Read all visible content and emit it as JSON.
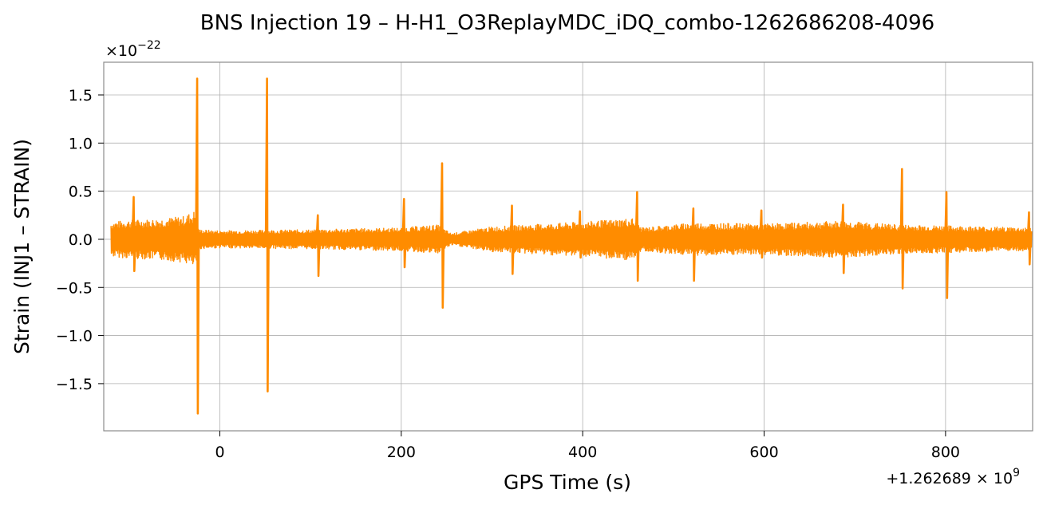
{
  "chart_data": {
    "type": "line",
    "title": "BNS Injection 19 – H-H1_O3ReplayMDC_iDQ_combo-1262686208-4096",
    "xlabel": "GPS Time (s)",
    "ylabel": "Strain (INJ1 – STRAIN)",
    "x_offset_label": "+1.262689 × 10",
    "x_offset_exponent": "9",
    "y_scale_label": "×10",
    "y_scale_exponent": "−22",
    "xlim": [
      -128,
      896
    ],
    "ylim": [
      -1.99,
      1.84
    ],
    "x_ticks": [
      0,
      200,
      400,
      600,
      800
    ],
    "x_tick_labels": [
      "0",
      "200",
      "400",
      "600",
      "800"
    ],
    "y_ticks": [
      1.5,
      1.0,
      0.5,
      0.0,
      -0.5,
      -1.0,
      -1.5
    ],
    "y_tick_labels": [
      "1.5",
      "1.0",
      "0.5",
      "0.0",
      "−0.5",
      "−1.0",
      "−1.5"
    ],
    "grid": true,
    "color": "#ff8c00",
    "series": [
      {
        "envelope": [
          {
            "x": -120,
            "upper": 0.18,
            "lower": -0.18
          },
          {
            "x": -100,
            "upper": 0.2,
            "lower": -0.2
          },
          {
            "x": -70,
            "upper": 0.21,
            "lower": -0.21
          },
          {
            "x": -40,
            "upper": 0.24,
            "lower": -0.24
          },
          {
            "x": -27,
            "upper": 0.3,
            "lower": -0.3
          },
          {
            "x": -23,
            "upper": 0.1,
            "lower": -0.1
          },
          {
            "x": 0,
            "upper": 0.09,
            "lower": -0.09
          },
          {
            "x": 100,
            "upper": 0.1,
            "lower": -0.1
          },
          {
            "x": 200,
            "upper": 0.12,
            "lower": -0.12
          },
          {
            "x": 240,
            "upper": 0.15,
            "lower": -0.15
          },
          {
            "x": 255,
            "upper": 0.06,
            "lower": -0.06
          },
          {
            "x": 300,
            "upper": 0.13,
            "lower": -0.13
          },
          {
            "x": 400,
            "upper": 0.18,
            "lower": -0.18
          },
          {
            "x": 455,
            "upper": 0.22,
            "lower": -0.22
          },
          {
            "x": 465,
            "upper": 0.12,
            "lower": -0.12
          },
          {
            "x": 520,
            "upper": 0.17,
            "lower": -0.17
          },
          {
            "x": 600,
            "upper": 0.16,
            "lower": -0.16
          },
          {
            "x": 685,
            "upper": 0.19,
            "lower": -0.19
          },
          {
            "x": 750,
            "upper": 0.15,
            "lower": -0.15
          },
          {
            "x": 800,
            "upper": 0.14,
            "lower": -0.14
          },
          {
            "x": 895,
            "upper": 0.12,
            "lower": -0.12
          }
        ],
        "spikes": [
          {
            "x": -95,
            "max": 0.44,
            "min": -0.33
          },
          {
            "x": -25,
            "max": 1.67,
            "min": -1.81
          },
          {
            "x": 52,
            "max": 1.67,
            "min": -1.58
          },
          {
            "x": 108,
            "max": 0.25,
            "min": -0.38
          },
          {
            "x": 203,
            "max": 0.42,
            "min": -0.29
          },
          {
            "x": 245,
            "max": 0.79,
            "min": -0.71
          },
          {
            "x": 322,
            "max": 0.35,
            "min": -0.36
          },
          {
            "x": 397,
            "max": 0.29,
            "min": -0.19
          },
          {
            "x": 460,
            "max": 0.49,
            "min": -0.43
          },
          {
            "x": 522,
            "max": 0.32,
            "min": -0.43
          },
          {
            "x": 597,
            "max": 0.3,
            "min": -0.19
          },
          {
            "x": 687,
            "max": 0.36,
            "min": -0.35
          },
          {
            "x": 752,
            "max": 0.73,
            "min": -0.51
          },
          {
            "x": 801,
            "max": 0.49,
            "min": -0.61
          },
          {
            "x": 892,
            "max": 0.28,
            "min": -0.26
          }
        ]
      }
    ]
  }
}
